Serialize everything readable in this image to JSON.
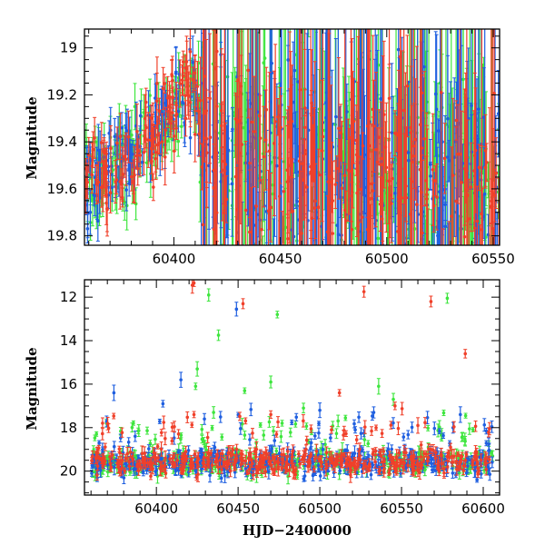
{
  "colors": {
    "blue": "#1f5fe0",
    "green": "#3ee63e",
    "red": "#f0402a",
    "frame": "#000000"
  },
  "chart_data": [
    {
      "type": "scatter",
      "title": "",
      "xlabel": "",
      "ylabel": "Magnitude",
      "xlim": [
        60358,
        60553
      ],
      "ylim": [
        19.84,
        18.92
      ],
      "y_inverted": true,
      "error_bars": true,
      "grid": false,
      "x_ticks": [
        60400,
        60450,
        60500,
        60550
      ],
      "y_ticks": [
        19,
        19.2,
        19.4,
        19.6,
        19.8
      ],
      "x_tick_labels": [
        "60400",
        "60450",
        "60500",
        "60550"
      ],
      "y_tick_labels": [
        "19",
        "19.2",
        "19.4",
        "19.6",
        "19.8"
      ],
      "trend": [
        [
          60358,
          19.62
        ],
        [
          60368,
          19.52
        ],
        [
          60380,
          19.45
        ],
        [
          60392,
          19.35
        ],
        [
          60402,
          19.24
        ],
        [
          60410,
          19.16
        ],
        [
          60420,
          19.45
        ],
        [
          60440,
          19.5
        ],
        [
          60470,
          19.52
        ],
        [
          60500,
          19.55
        ],
        [
          60530,
          19.58
        ],
        [
          60553,
          19.58
        ]
      ],
      "series_colors": [
        "#3ee63e",
        "#1f5fe0",
        "#f0402a"
      ]
    },
    {
      "type": "scatter",
      "title": "",
      "xlabel": "HJD−2400000",
      "ylabel": "Magnitude",
      "xlim": [
        60356,
        60610
      ],
      "ylim": [
        21.1,
        11.2
      ],
      "y_inverted": true,
      "error_bars": true,
      "grid": false,
      "x_ticks": [
        60400,
        60450,
        60500,
        60550,
        60600
      ],
      "y_ticks": [
        12,
        14,
        16,
        18,
        20
      ],
      "x_tick_labels": [
        "60400",
        "60450",
        "60500",
        "60550",
        "60600"
      ],
      "y_tick_labels": [
        "12",
        "14",
        "16",
        "18",
        "20"
      ],
      "flares": [
        {
          "x": 60422,
          "y": 11.45,
          "c": "red"
        },
        {
          "x": 60423,
          "y": 11.35,
          "c": "red"
        },
        {
          "x": 60432,
          "y": 11.9,
          "c": "green"
        },
        {
          "x": 60449,
          "y": 12.55,
          "c": "blue"
        },
        {
          "x": 60453,
          "y": 12.3,
          "c": "red"
        },
        {
          "x": 60474,
          "y": 12.8,
          "c": "green"
        },
        {
          "x": 60527,
          "y": 11.75,
          "c": "red"
        },
        {
          "x": 60568,
          "y": 12.2,
          "c": "red"
        },
        {
          "x": 60578,
          "y": 12.05,
          "c": "green"
        },
        {
          "x": 60589,
          "y": 14.6,
          "c": "red"
        },
        {
          "x": 60438,
          "y": 13.75,
          "c": "green"
        },
        {
          "x": 60425,
          "y": 15.3,
          "c": "green"
        },
        {
          "x": 60424,
          "y": 16.1,
          "c": "green"
        },
        {
          "x": 60415,
          "y": 15.8,
          "c": "blue"
        },
        {
          "x": 60374,
          "y": 16.4,
          "c": "blue"
        },
        {
          "x": 60404,
          "y": 16.9,
          "c": "blue"
        },
        {
          "x": 60470,
          "y": 15.9,
          "c": "green"
        },
        {
          "x": 60454,
          "y": 16.3,
          "c": "green"
        },
        {
          "x": 60536,
          "y": 16.1,
          "c": "green"
        },
        {
          "x": 60545,
          "y": 16.7,
          "c": "green"
        },
        {
          "x": 60512,
          "y": 16.4,
          "c": "red"
        },
        {
          "x": 60490,
          "y": 17.1,
          "c": "green"
        },
        {
          "x": 60435,
          "y": 17.3,
          "c": "green"
        },
        {
          "x": 60423,
          "y": 17.4,
          "c": "red"
        },
        {
          "x": 60500,
          "y": 17.2,
          "c": "blue"
        },
        {
          "x": 60533,
          "y": 17.3,
          "c": "blue"
        },
        {
          "x": 60546,
          "y": 17.0,
          "c": "red"
        },
        {
          "x": 60560,
          "y": 17.9,
          "c": "red"
        },
        {
          "x": 60586,
          "y": 17.4,
          "c": "blue"
        },
        {
          "x": 60470,
          "y": 17.4,
          "c": "red"
        }
      ]
    }
  ]
}
